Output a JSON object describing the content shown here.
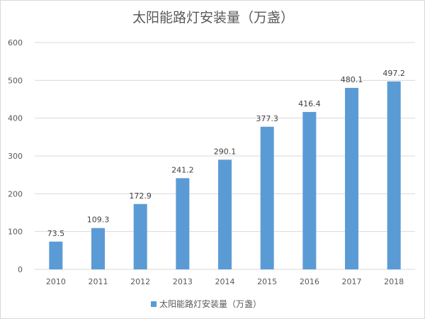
{
  "chart_data": {
    "type": "bar",
    "title": "太阳能路灯安装量（万盏）",
    "categories": [
      "2010",
      "2011",
      "2012",
      "2013",
      "2014",
      "2015",
      "2016",
      "2017",
      "2018"
    ],
    "series": [
      {
        "name": "太阳能路灯安装量（万盏）",
        "values": [
          73.5,
          109.3,
          172.9,
          241.2,
          290.1,
          377.3,
          416.4,
          480.1,
          497.2
        ],
        "color": "#5b9bd5"
      }
    ],
    "data_labels": [
      "73.5",
      "109.3",
      "172.9",
      "241.2",
      "290.1",
      "377.3",
      "416.4",
      "480.1",
      "497.2"
    ],
    "ylim": [
      0,
      600
    ],
    "yticks": [
      "0",
      "100",
      "200",
      "300",
      "400",
      "500",
      "600"
    ],
    "grid": true,
    "legend_position": "bottom",
    "gridline_color": "#d9d9d9"
  }
}
